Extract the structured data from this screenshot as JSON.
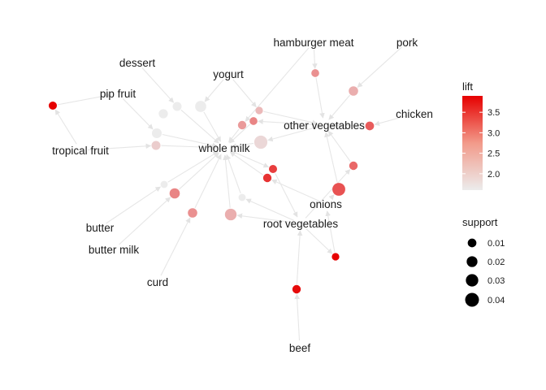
{
  "diagram": {
    "type": "association-rules-graph",
    "rule_node_color": "#e8392a",
    "edge_color": "#e6e6e6",
    "items": [
      {
        "id": "hamburger_meat",
        "label": "hamburger meat"
      },
      {
        "id": "pork",
        "label": "pork"
      },
      {
        "id": "dessert",
        "label": "dessert"
      },
      {
        "id": "yogurt",
        "label": "yogurt"
      },
      {
        "id": "pip_fruit",
        "label": "pip fruit"
      },
      {
        "id": "other_vegetables",
        "label": "other vegetables"
      },
      {
        "id": "chicken",
        "label": "chicken"
      },
      {
        "id": "tropical_fruit",
        "label": "tropical fruit"
      },
      {
        "id": "whole_milk",
        "label": "whole milk"
      },
      {
        "id": "onions",
        "label": "onions"
      },
      {
        "id": "root_vegetables",
        "label": "root vegetables"
      },
      {
        "id": "butter",
        "label": "butter"
      },
      {
        "id": "butter_milk",
        "label": "butter milk"
      },
      {
        "id": "curd",
        "label": "curd"
      },
      {
        "id": "beef",
        "label": "beef"
      }
    ],
    "rules": [
      {
        "lift": 3.95,
        "support": 0.008
      },
      {
        "lift": 1.55,
        "support": 0.011
      },
      {
        "lift": 1.5,
        "support": 0.012
      },
      {
        "lift": 1.55,
        "support": 0.022
      },
      {
        "lift": 1.55,
        "support": 0.015
      },
      {
        "lift": 1.8,
        "support": 0.035
      },
      {
        "lift": 2.5,
        "support": 0.007
      },
      {
        "lift": 2.2,
        "support": 0.013
      },
      {
        "lift": 2.1,
        "support": 0.006
      },
      {
        "lift": 2.6,
        "support": 0.007
      },
      {
        "lift": 2.4,
        "support": 0.009
      },
      {
        "lift": 3.0,
        "support": 0.01
      },
      {
        "lift": 1.9,
        "support": 0.011
      },
      {
        "lift": 3.3,
        "support": 0.008
      },
      {
        "lift": 1.6,
        "support": 0.005
      },
      {
        "lift": 2.6,
        "support": 0.017
      },
      {
        "lift": 1.6,
        "support": 0.005
      },
      {
        "lift": 2.9,
        "support": 0.009
      },
      {
        "lift": 3.1,
        "support": 0.033
      },
      {
        "lift": 2.5,
        "support": 0.013
      },
      {
        "lift": 2.2,
        "support": 0.025
      },
      {
        "lift": 3.4,
        "support": 0.009
      },
      {
        "lift": 3.95,
        "support": 0.006
      },
      {
        "lift": 3.8,
        "support": 0.009
      }
    ],
    "legend": {
      "lift": {
        "title": "lift",
        "ticks": [
          "3.5",
          "3.0",
          "2.5",
          "2.0"
        ],
        "tick_values": [
          3.5,
          3.0,
          2.5,
          2.0
        ],
        "range": [
          1.6,
          3.9
        ],
        "low_color": "#ececec",
        "high_color": "#e60000"
      },
      "support": {
        "title": "support",
        "ticks": [
          "0.01",
          "0.02",
          "0.03",
          "0.04"
        ],
        "tick_values": [
          0.01,
          0.02,
          0.03,
          0.04
        ],
        "color": "#000000"
      }
    }
  }
}
